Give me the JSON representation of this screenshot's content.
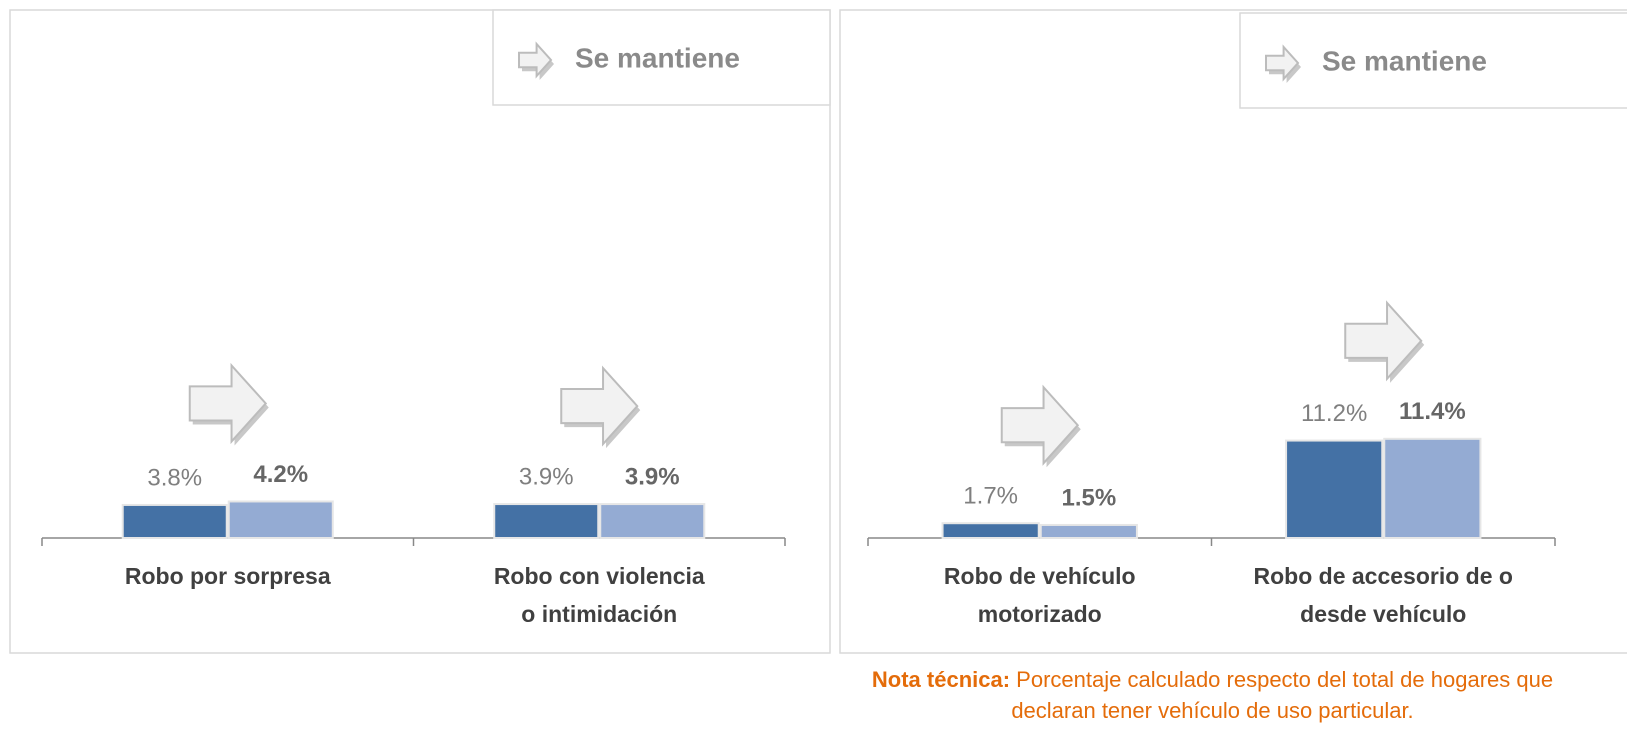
{
  "chart_data": [
    {
      "type": "bar",
      "annotation": "Se mantiene",
      "categories": [
        "Robo por sorpresa",
        "Robo con violencia\no intimidación"
      ],
      "series": [
        {
          "color": "#4471a5",
          "values": [
            3.8,
            3.9
          ],
          "value_labels": [
            "3.8%",
            "3.9%"
          ]
        },
        {
          "color": "#94abd3",
          "values": [
            4.2,
            3.9
          ],
          "value_labels": [
            "4.2%",
            "3.9%"
          ]
        }
      ]
    },
    {
      "type": "bar",
      "annotation": "Se mantiene",
      "categories": [
        "Robo de vehículo\nmotorizado",
        "Robo de accesorio de o\ndesde vehículo"
      ],
      "series": [
        {
          "color": "#4471a5",
          "values": [
            1.7,
            11.2
          ],
          "value_labels": [
            "1.7%",
            "11.2%"
          ]
        },
        {
          "color": "#94abd3",
          "values": [
            1.5,
            11.4
          ],
          "value_labels": [
            "1.5%",
            "11.4%"
          ]
        }
      ],
      "note_label": "Nota técnica:",
      "note": "Porcentaje calculado respecto del total de hogares que declaran tener vehículo de uso particular."
    }
  ]
}
